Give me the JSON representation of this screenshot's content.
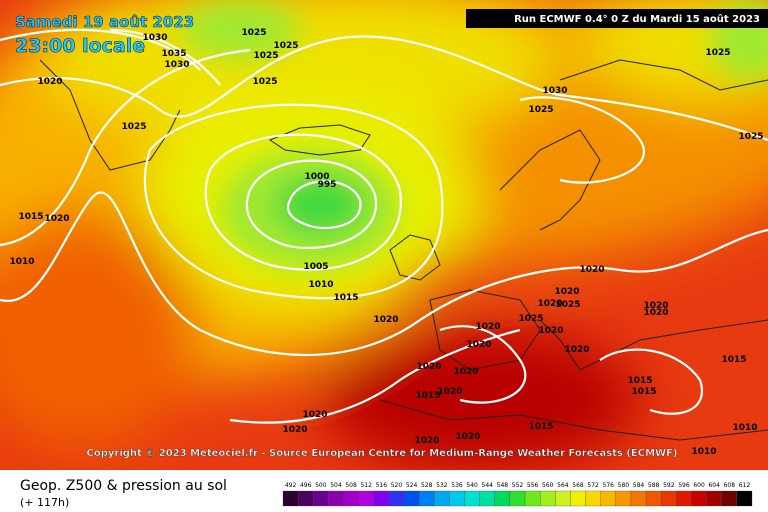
{
  "header": {
    "date": "Samedi 19 août 2023",
    "time": "23:00 locale",
    "run": "Run ECMWF 0.4° 0 Z du Mardi 15 août 2023"
  },
  "map": {
    "isobar_labels": [
      1030,
      1035,
      1030,
      1025,
      1025,
      1025,
      1025,
      1020,
      1025,
      1030,
      1025,
      1025,
      1025,
      1000,
      995,
      1015,
      1020,
      1010,
      1005,
      1010,
      1015,
      1020,
      1020,
      1020,
      1020,
      1025,
      1020,
      1020,
      1025,
      1020,
      1020,
      1020,
      1020,
      1020,
      1020,
      1015,
      1020,
      1015,
      1015,
      1015,
      1020,
      1020,
      1015,
      1020,
      1020,
      1010,
      1010
    ]
  },
  "copyright": "Copyright © 2023 Meteociel.fr - Source European Centre for Medium-Range Weather Forecasts (ECMWF)",
  "footer": {
    "title": "Geop. Z500 & pression au sol",
    "lead": "(+ 117h)"
  },
  "legend": {
    "labels": [
      492,
      496,
      500,
      504,
      508,
      512,
      516,
      520,
      524,
      528,
      532,
      536,
      540,
      544,
      548,
      552,
      556,
      560,
      564,
      568,
      572,
      576,
      580,
      584,
      588,
      592,
      596,
      600,
      604,
      608,
      612
    ],
    "colors": [
      "#2a0030",
      "#4b0060",
      "#6a0090",
      "#8a00b0",
      "#a000c8",
      "#b000e0",
      "#8000f0",
      "#3030f0",
      "#0050f0",
      "#0080f0",
      "#00a8f0",
      "#00c8e8",
      "#00e0d0",
      "#00e0a0",
      "#00d860",
      "#30e030",
      "#70e820",
      "#a0f020",
      "#d0f020",
      "#f0f000",
      "#f8d800",
      "#f8b800",
      "#f89800",
      "#f07800",
      "#f05800",
      "#e83800",
      "#e01800",
      "#c80000",
      "#a00000",
      "#700000",
      "#000000"
    ]
  }
}
